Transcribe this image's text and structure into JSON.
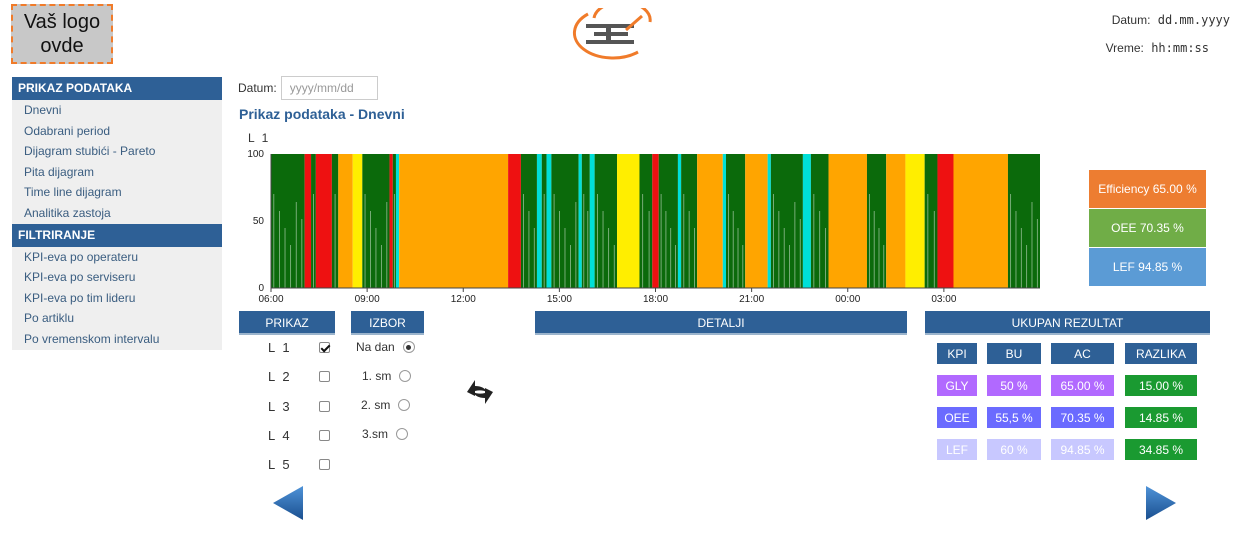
{
  "header": {
    "logo_placeholder": "Vaš logo ovde",
    "date_label": "Datum:",
    "date_value": "dd.mm.yyyy",
    "time_label": "Vreme:",
    "time_value": "hh:mm:ss"
  },
  "sidebar": {
    "sections": [
      {
        "title": "PRIKAZ PODATAKA",
        "items": [
          "Dnevni",
          "Odabrani period",
          "Dijagram stubići - Pareto",
          "Pita dijagram",
          "Time line dijagram",
          "Analitika zastoja"
        ]
      },
      {
        "title": "FILTRIRANJE",
        "items": [
          "KPI-eva po operateru",
          "KPI-eva po serviseru",
          "KPI-eva po tim lideru",
          "Po artiklu",
          "Po vremenskom intervalu"
        ]
      }
    ]
  },
  "main": {
    "date_label": "Datum:",
    "date_placeholder": "yyyy/mm/dd",
    "title": "Prikaz podataka - Dnevni",
    "line_label": "L 1"
  },
  "chart_data": {
    "type": "bar",
    "subtype": "timeline",
    "ylim": [
      0,
      100
    ],
    "y_ticks": [
      0,
      50,
      100
    ],
    "x_ticks": [
      "06:00",
      "09:00",
      "12:00",
      "15:00",
      "18:00",
      "21:00",
      "00:00",
      "03:00"
    ],
    "x_hours": [
      6,
      30
    ],
    "segments": [
      {
        "start": 6.0,
        "end": 7.05,
        "state": "run"
      },
      {
        "start": 7.05,
        "end": 7.25,
        "state": "stop"
      },
      {
        "start": 7.25,
        "end": 7.4,
        "state": "run"
      },
      {
        "start": 7.4,
        "end": 7.9,
        "state": "stop"
      },
      {
        "start": 7.9,
        "end": 8.1,
        "state": "run"
      },
      {
        "start": 8.1,
        "end": 8.55,
        "state": "idle"
      },
      {
        "start": 8.55,
        "end": 8.85,
        "state": "setup"
      },
      {
        "start": 8.85,
        "end": 9.7,
        "state": "run"
      },
      {
        "start": 9.7,
        "end": 9.8,
        "state": "stop"
      },
      {
        "start": 9.8,
        "end": 9.9,
        "state": "run"
      },
      {
        "start": 9.9,
        "end": 10.0,
        "state": "minor"
      },
      {
        "start": 10.0,
        "end": 13.4,
        "state": "idle"
      },
      {
        "start": 13.4,
        "end": 13.8,
        "state": "stop"
      },
      {
        "start": 13.8,
        "end": 14.3,
        "state": "run"
      },
      {
        "start": 14.3,
        "end": 14.45,
        "state": "minor"
      },
      {
        "start": 14.45,
        "end": 14.6,
        "state": "run"
      },
      {
        "start": 14.6,
        "end": 14.75,
        "state": "minor"
      },
      {
        "start": 14.75,
        "end": 15.6,
        "state": "run"
      },
      {
        "start": 15.6,
        "end": 15.7,
        "state": "minor"
      },
      {
        "start": 15.7,
        "end": 15.95,
        "state": "run"
      },
      {
        "start": 15.95,
        "end": 16.1,
        "state": "minor"
      },
      {
        "start": 16.1,
        "end": 16.8,
        "state": "run"
      },
      {
        "start": 16.8,
        "end": 17.5,
        "state": "setup"
      },
      {
        "start": 17.5,
        "end": 17.9,
        "state": "run"
      },
      {
        "start": 17.9,
        "end": 18.1,
        "state": "stop"
      },
      {
        "start": 18.1,
        "end": 18.7,
        "state": "run"
      },
      {
        "start": 18.7,
        "end": 18.8,
        "state": "minor"
      },
      {
        "start": 18.8,
        "end": 19.3,
        "state": "run"
      },
      {
        "start": 19.3,
        "end": 20.1,
        "state": "idle"
      },
      {
        "start": 20.1,
        "end": 20.2,
        "state": "minor"
      },
      {
        "start": 20.2,
        "end": 20.8,
        "state": "run"
      },
      {
        "start": 20.8,
        "end": 21.5,
        "state": "idle"
      },
      {
        "start": 21.5,
        "end": 21.6,
        "state": "minor"
      },
      {
        "start": 21.6,
        "end": 22.6,
        "state": "run"
      },
      {
        "start": 22.6,
        "end": 22.85,
        "state": "minor"
      },
      {
        "start": 22.85,
        "end": 23.4,
        "state": "run"
      },
      {
        "start": 23.4,
        "end": 24.6,
        "state": "idle"
      },
      {
        "start": 24.6,
        "end": 25.2,
        "state": "run"
      },
      {
        "start": 25.2,
        "end": 25.8,
        "state": "idle"
      },
      {
        "start": 25.8,
        "end": 26.4,
        "state": "setup"
      },
      {
        "start": 26.4,
        "end": 26.8,
        "state": "run"
      },
      {
        "start": 26.8,
        "end": 27.3,
        "state": "stop"
      },
      {
        "start": 27.3,
        "end": 29.0,
        "state": "idle"
      },
      {
        "start": 29.0,
        "end": 30.0,
        "state": "run"
      }
    ],
    "state_colors": {
      "run": "#0b6a0b",
      "stop": "#ee1111",
      "idle": "#ffa500",
      "setup": "#ffee00",
      "minor": "#00e0d8"
    }
  },
  "kpi_summary": [
    {
      "label": "Efficiency 65.00 %",
      "color": "#ed7d31"
    },
    {
      "label": "OEE 70.35 %",
      "color": "#70ad47"
    },
    {
      "label": "LEF 94.85 %",
      "color": "#5b9bd5"
    }
  ],
  "sections": {
    "prikaz": "PRIKAZ",
    "izbor": "IZBOR",
    "detalji": "DETALJI",
    "ukupan": "UKUPAN REZULTAT"
  },
  "prikaz_lines": [
    {
      "label": "L 1",
      "checked": true
    },
    {
      "label": "L 2",
      "checked": false
    },
    {
      "label": "L 3",
      "checked": false
    },
    {
      "label": "L 4",
      "checked": false
    },
    {
      "label": "L 5",
      "checked": false
    }
  ],
  "izbor_options": [
    {
      "label": "Na dan",
      "checked": true
    },
    {
      "label": "1. sm",
      "checked": false
    },
    {
      "label": "2. sm",
      "checked": false
    },
    {
      "label": "3.sm",
      "checked": false
    }
  ],
  "results": {
    "headers": [
      "KPI",
      "BU",
      "AC",
      "RAZLIKA"
    ],
    "rows": [
      {
        "kpi": "GLY",
        "bu": "50 %",
        "ac": "65.00 %",
        "razlika": "15.00 %"
      },
      {
        "kpi": "OEE",
        "bu": "55,5 %",
        "ac": "70.35 %",
        "razlika": "14.85 %"
      },
      {
        "kpi": "LEF",
        "bu": "60 %",
        "ac": "94.85 %",
        "razlika": "34.85 %"
      }
    ],
    "row_colors": [
      {
        "kpi": "#b169ff",
        "bu": "#b169ff",
        "ac": "#b169ff",
        "razlika": "#1a9a31"
      },
      {
        "kpi": "#6b6bff",
        "bu": "#6b6bff",
        "ac": "#6b6bff",
        "razlika": "#1a9a31"
      },
      {
        "kpi": "#c8c8ff",
        "bu": "#c8c8ff",
        "ac": "#c8c8ff",
        "razlika": "#1a9a31"
      }
    ]
  },
  "colors": {
    "primary": "#2e6096",
    "accent": "#f07b2a"
  },
  "icons": {
    "refresh": "refresh-icon",
    "prev": "arrow-left-icon",
    "next": "arrow-right-icon"
  }
}
